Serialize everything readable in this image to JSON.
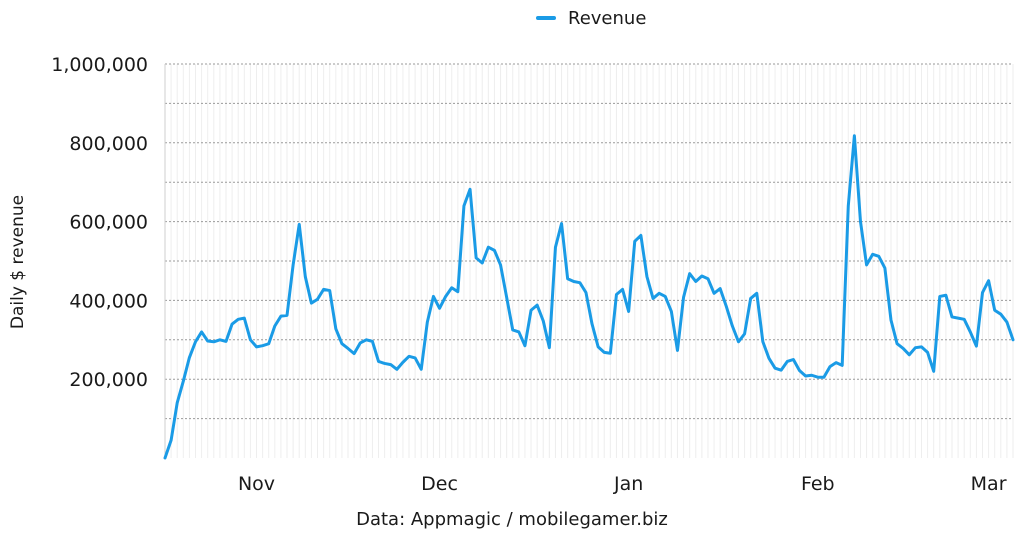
{
  "legend": {
    "label": "Revenue",
    "color": "#1a9be6"
  },
  "source": "Data: Appmagic / mobilegamer.biz",
  "chart_data": {
    "type": "line",
    "title": "",
    "ylabel": "Daily $ revenue",
    "xlabel": "",
    "ylim": [
      0,
      1000000
    ],
    "yticks": [
      200000,
      400000,
      600000,
      800000,
      1000000
    ],
    "ytick_labels": [
      "200,000",
      "400,000",
      "600,000",
      "800,000",
      "1,000,000"
    ],
    "xticks": [
      {
        "label": "Nov",
        "x": 15
      },
      {
        "label": "Dec",
        "x": 45
      },
      {
        "label": "Jan",
        "x": 76
      },
      {
        "label": "Feb",
        "x": 107
      },
      {
        "label": "Mar",
        "x": 135
      }
    ],
    "grid": true,
    "legend_position": "top-center",
    "series": [
      {
        "name": "Revenue",
        "color": "#1a9be6",
        "values": [
          0,
          45000,
          140000,
          195000,
          255000,
          295000,
          320000,
          297000,
          295000,
          300000,
          296000,
          340000,
          352000,
          355000,
          300000,
          282000,
          285000,
          290000,
          335000,
          360000,
          362000,
          490000,
          593000,
          460000,
          393000,
          403000,
          428000,
          425000,
          328000,
          290000,
          278000,
          265000,
          292000,
          300000,
          296000,
          245000,
          240000,
          237000,
          225000,
          243000,
          258000,
          254000,
          225000,
          345000,
          410000,
          380000,
          410000,
          432000,
          422000,
          640000,
          682000,
          508000,
          495000,
          535000,
          527000,
          490000,
          408000,
          325000,
          320000,
          285000,
          375000,
          388000,
          348000,
          280000,
          535000,
          595000,
          455000,
          448000,
          445000,
          420000,
          340000,
          282000,
          268000,
          266000,
          415000,
          428000,
          372000,
          550000,
          565000,
          460000,
          405000,
          418000,
          410000,
          372000,
          273000,
          408000,
          468000,
          448000,
          462000,
          455000,
          418000,
          430000,
          385000,
          335000,
          295000,
          315000,
          405000,
          418000,
          295000,
          253000,
          228000,
          223000,
          245000,
          250000,
          222000,
          208000,
          210000,
          205000,
          205000,
          232000,
          242000,
          235000,
          640000,
          818000,
          600000,
          490000,
          517000,
          512000,
          482000,
          350000,
          290000,
          278000,
          262000,
          280000,
          282000,
          268000,
          220000,
          410000,
          413000,
          358000,
          355000,
          352000,
          320000,
          284000,
          420000,
          450000,
          375000,
          365000,
          345000,
          300000
        ]
      }
    ]
  }
}
